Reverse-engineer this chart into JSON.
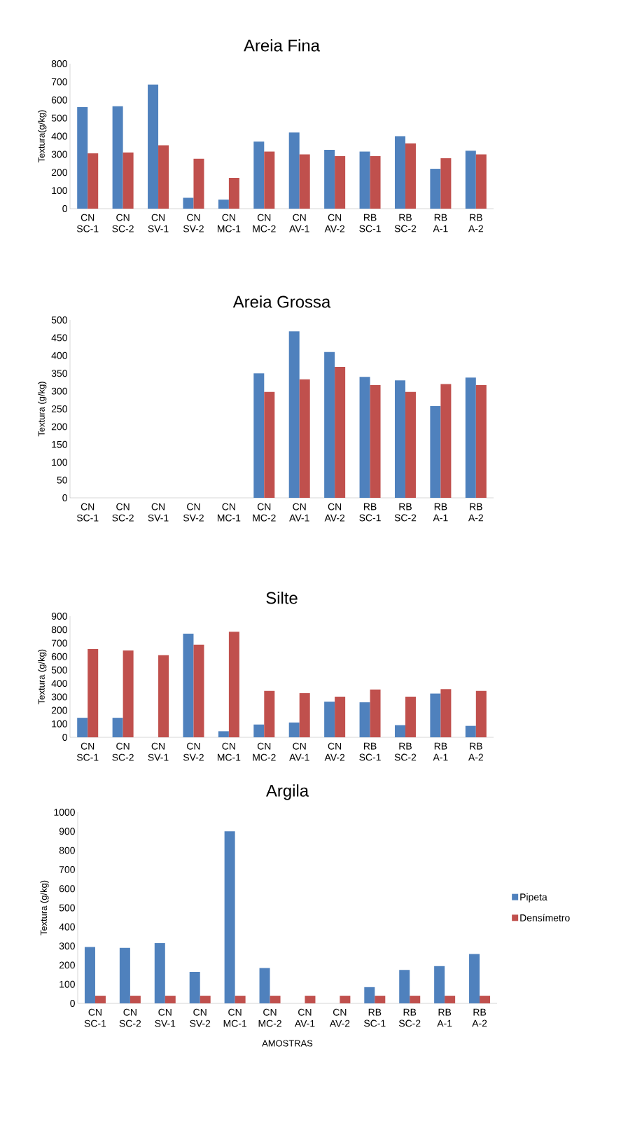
{
  "chart_data": [
    {
      "type": "bar",
      "title": "Areia Fina",
      "ylabel": "Textura(g/kg)",
      "categories": [
        "CN SC-1",
        "CN SC-2",
        "CN SV-1",
        "CN SV-2",
        "CN MC-1",
        "CN MC-2",
        "CN AV-1",
        "CN AV-2",
        "RB SC-1",
        "RB SC-2",
        "RB A-1",
        "RB A-2"
      ],
      "ylim": [
        0,
        800
      ],
      "yticks": [
        0,
        100,
        200,
        300,
        400,
        500,
        600,
        700,
        800
      ],
      "series": [
        {
          "color": "#4f81bd",
          "values": [
            560,
            565,
            685,
            60,
            50,
            370,
            420,
            325,
            315,
            400,
            220,
            320
          ]
        },
        {
          "color": "#c0504d",
          "values": [
            305,
            310,
            350,
            275,
            170,
            315,
            300,
            290,
            290,
            360,
            278,
            300
          ]
        }
      ]
    },
    {
      "type": "bar",
      "title": "Areia Grossa",
      "ylabel": "Textura (g/kg)",
      "categories": [
        "CN SC-1",
        "CN SC-2",
        "CN SV-1",
        "CN SV-2",
        "CN MC-1",
        "CN MC-2",
        "CN AV-1",
        "CN AV-2",
        "RB SC-1",
        "RB SC-2",
        "RB A-1",
        "RB A-2"
      ],
      "ylim": [
        0,
        500
      ],
      "yticks": [
        0,
        50,
        100,
        150,
        200,
        250,
        300,
        350,
        400,
        450,
        500
      ],
      "series": [
        {
          "color": "#4f81bd",
          "values": [
            0,
            0,
            0,
            0,
            0,
            350,
            468,
            410,
            340,
            330,
            258,
            338
          ]
        },
        {
          "color": "#c0504d",
          "values": [
            0,
            0,
            0,
            0,
            0,
            298,
            333,
            368,
            317,
            298,
            320,
            317
          ]
        }
      ]
    },
    {
      "type": "bar",
      "title": "Silte",
      "ylabel": "Textura (g/kg)",
      "categories": [
        "CN SC-1",
        "CN SC-2",
        "CN SV-1",
        "CN SV-2",
        "CN MC-1",
        "CN MC-2",
        "CN AV-1",
        "CN AV-2",
        "RB SC-1",
        "RB SC-2",
        "RB A-1",
        "RB A-2"
      ],
      "ylim": [
        0,
        900
      ],
      "yticks": [
        0,
        100,
        200,
        300,
        400,
        500,
        600,
        700,
        800,
        900
      ],
      "series": [
        {
          "color": "#4f81bd",
          "values": [
            145,
            145,
            0,
            770,
            45,
            95,
            110,
            265,
            260,
            90,
            325,
            85
          ]
        },
        {
          "color": "#c0504d",
          "values": [
            655,
            645,
            610,
            688,
            785,
            345,
            328,
            302,
            355,
            302,
            358,
            345
          ]
        }
      ]
    },
    {
      "type": "bar",
      "title": "Argila",
      "ylabel": "Textura (g/kg)",
      "xlabel": "AMOSTRAS",
      "legend": "right",
      "categories": [
        "CN SC-1",
        "CN SC-2",
        "CN SV-1",
        "CN SV-2",
        "CN MC-1",
        "CN MC-2",
        "CN AV-1",
        "CN AV-2",
        "RB SC-1",
        "RB SC-2",
        "RB A-1",
        "RB A-2"
      ],
      "ylim": [
        0,
        1000
      ],
      "yticks": [
        0,
        100,
        200,
        300,
        400,
        500,
        600,
        700,
        800,
        900,
        1000
      ],
      "series": [
        {
          "name": "Pipeta",
          "color": "#4f81bd",
          "values": [
            295,
            290,
            315,
            165,
            900,
            185,
            0,
            0,
            85,
            175,
            195,
            258
          ]
        },
        {
          "name": "Densímetro",
          "color": "#c0504d",
          "values": [
            40,
            40,
            40,
            40,
            40,
            40,
            40,
            40,
            40,
            40,
            40,
            40
          ]
        }
      ]
    }
  ]
}
